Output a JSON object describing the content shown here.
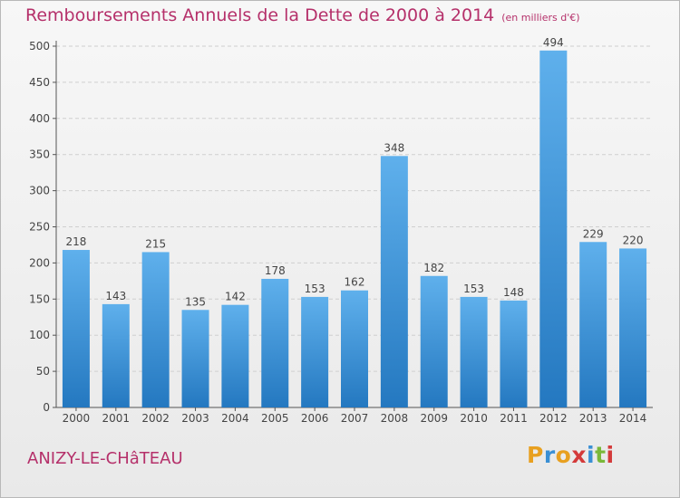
{
  "chart_data": {
    "type": "bar",
    "title": "Remboursements Annuels de la Dette de 2000 à 2014",
    "subtitle": "(en milliers d'€)",
    "xlabel": "",
    "ylabel": "",
    "categories": [
      "2000",
      "2001",
      "2002",
      "2003",
      "2004",
      "2005",
      "2006",
      "2007",
      "2008",
      "2009",
      "2010",
      "2011",
      "2012",
      "2013",
      "2014"
    ],
    "values": [
      218,
      143,
      215,
      135,
      142,
      178,
      153,
      162,
      348,
      182,
      153,
      148,
      494,
      229,
      220
    ],
    "ylim": [
      0,
      500
    ],
    "yticks": [
      0,
      50,
      100,
      150,
      200,
      250,
      300,
      350,
      400,
      450,
      500
    ],
    "grid": true,
    "bar_color": "#3a93d8",
    "title_color": "#b5306a"
  },
  "footer": {
    "commune": "ANIZY-LE-CHâTEAU",
    "logo_letters": [
      "P",
      "r",
      "o",
      "x",
      "i",
      "t",
      "i"
    ],
    "logo_colors": [
      "#e8a020",
      "#3a8fd4",
      "#e8a020",
      "#d43a3a",
      "#3a8fd4",
      "#7ab83a",
      "#d43a3a"
    ]
  }
}
